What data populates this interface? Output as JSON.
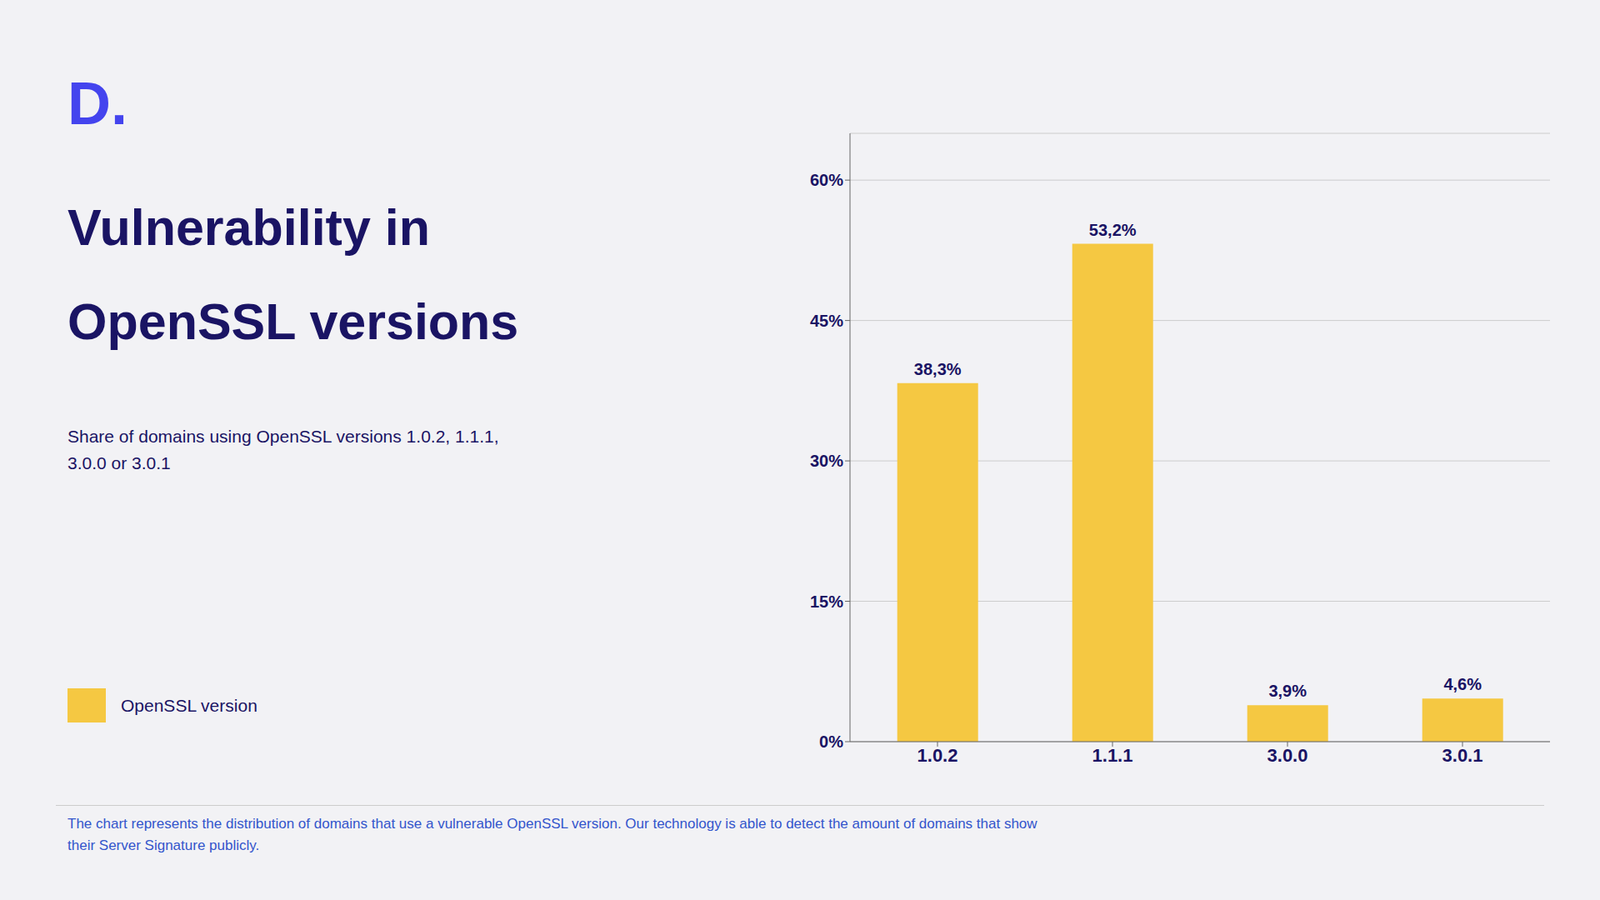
{
  "chart_data": {
    "type": "bar",
    "title": "Vulnerability in\nOpenSSL versions",
    "subtitle": "Share of domains using OpenSSL versions 1.0.2, 1.1.1,\n3.0.0 or 3.0.1",
    "annotations": [
      "D.",
      "The chart represents the distribution of domains that use a vulnerable OpenSSL version. Our technology is able to detect the amount of domains that show\ntheir Server Signature publicly."
    ],
    "categories": [
      "1.0.2",
      "1.1.1",
      "3.0.0",
      "3.0.1"
    ],
    "series": [
      {
        "name": "OpenSSL version",
        "color": "#F5C842",
        "values": [
          38.3,
          53.2,
          3.9,
          4.6
        ],
        "value_labels": [
          "38,3%",
          "53,2%",
          "3,9%",
          "4,6%"
        ]
      }
    ],
    "ylim": [
      0,
      65
    ],
    "yticks": [
      {
        "value": 0,
        "label": "0%"
      },
      {
        "value": 15,
        "label": "15%"
      },
      {
        "value": 30,
        "label": "30%"
      },
      {
        "value": 45,
        "label": "45%"
      },
      {
        "value": 60,
        "label": "60%"
      }
    ],
    "grid": true,
    "legend": "lower left"
  }
}
